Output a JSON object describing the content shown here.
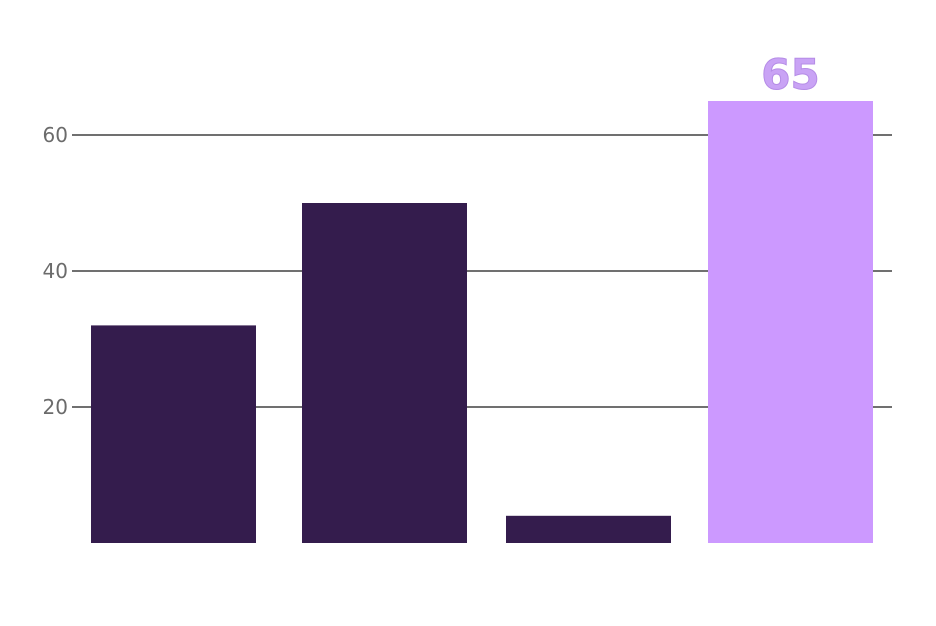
{
  "chart_data": {
    "type": "bar",
    "categories": [
      "",
      "",
      "",
      ""
    ],
    "values": [
      32,
      50,
      4,
      65
    ],
    "highlight_index": 3,
    "data_labels": [
      null,
      null,
      null,
      "65"
    ],
    "title": "",
    "xlabel": "",
    "ylabel": "",
    "ylim": [
      0,
      70
    ],
    "yticks": [
      20,
      40,
      60
    ],
    "ytick_labels": [
      "20",
      "40",
      "60"
    ],
    "grid": true,
    "colors": {
      "bar": "#341c4d",
      "highlight": "#cc99ff",
      "grid": "#707070",
      "data_label": "#c9a3f5"
    }
  }
}
